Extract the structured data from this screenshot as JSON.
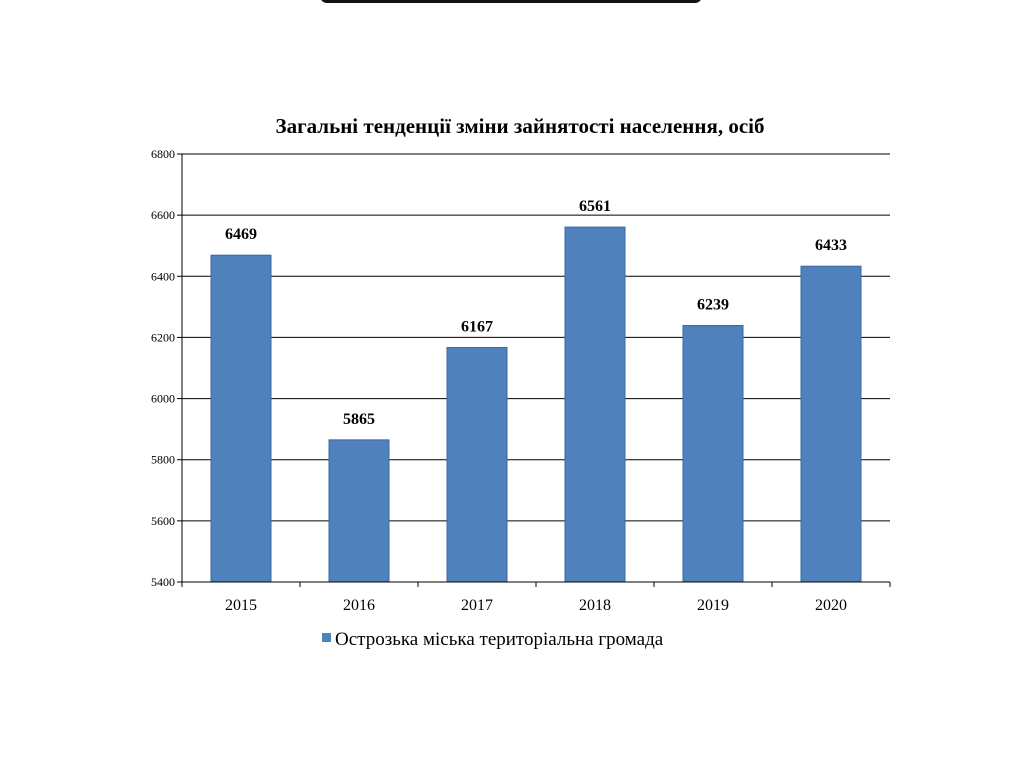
{
  "chart_data": {
    "type": "bar",
    "title": "Загальні тенденції зміни зайнятості населення, осіб",
    "categories": [
      "2015",
      "2016",
      "2017",
      "2018",
      "2019",
      "2020"
    ],
    "series": [
      {
        "name": "Острозька міська територіальна громада",
        "values": [
          6469,
          5865,
          6167,
          6561,
          6239,
          6433
        ],
        "color": "#4f81bd"
      }
    ],
    "ylim": [
      5400,
      6800
    ],
    "yticks": [
      "6800",
      "6600",
      "6400",
      "6200",
      "6000",
      "5800",
      "5600",
      "5400"
    ],
    "data_labels": [
      "6469",
      "5865",
      "6167",
      "6561",
      "6239",
      "6433"
    ],
    "grid": true,
    "legend_position": "bottom",
    "xlabel": "",
    "ylabel": ""
  }
}
